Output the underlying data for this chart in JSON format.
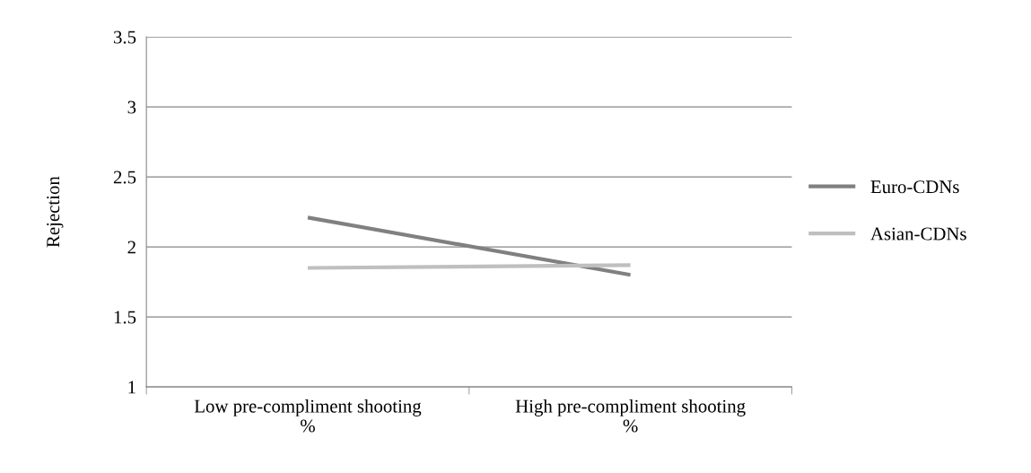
{
  "chart_data": {
    "type": "line",
    "ylabel": "Rejection",
    "categories": [
      "Low pre-compliment shooting %",
      "High pre-compliment shooting %"
    ],
    "series": [
      {
        "name": "Euro-CDNs",
        "color": "#808080",
        "values": [
          2.21,
          1.8
        ]
      },
      {
        "name": "Asian-CDNs",
        "color": "#bfbfbf",
        "values": [
          1.85,
          1.87
        ]
      }
    ],
    "ylim": [
      1,
      3.5
    ],
    "yticks": [
      1,
      1.5,
      2,
      2.5,
      3,
      3.5
    ],
    "grid": "y",
    "legend": "right",
    "marker": "none"
  }
}
